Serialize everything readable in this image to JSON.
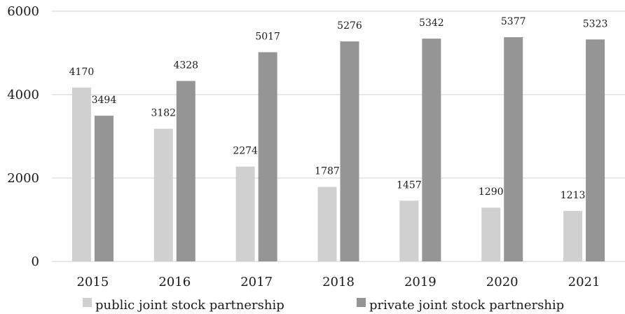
{
  "chart_data": {
    "type": "bar",
    "categories": [
      "2015",
      "2016",
      "2017",
      "2018",
      "2019",
      "2020",
      "2021"
    ],
    "series": [
      {
        "name": "public joint stock partnership",
        "values": [
          4170,
          3182,
          2274,
          1787,
          1457,
          1290,
          1213
        ],
        "color": "#d0d0d0"
      },
      {
        "name": "private joint stock partnership",
        "values": [
          3494,
          4328,
          5017,
          5276,
          5342,
          5377,
          5323
        ],
        "color": "#959595"
      }
    ],
    "y_ticks": [
      "0",
      "2000",
      "4000",
      "6000"
    ],
    "ylim": [
      0,
      6000
    ],
    "grid": true,
    "legend_position": "bottom"
  }
}
